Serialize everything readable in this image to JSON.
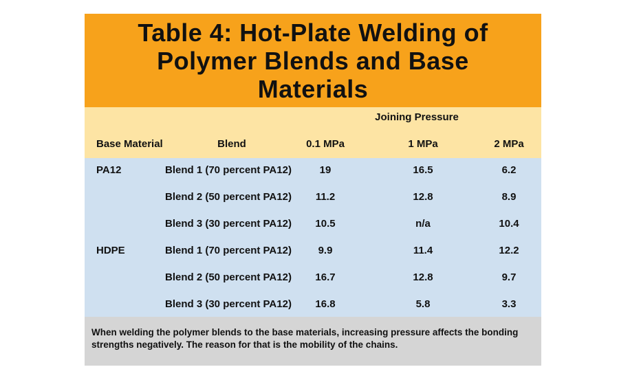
{
  "title": "Table 4: Hot-Plate Welding of Polymer Blends and Base Materials",
  "group_header": "Joining Pressure",
  "columns": {
    "base_material": "Base Material",
    "blend": "Blend",
    "p01": "0.1 MPa",
    "p1": "1 MPa",
    "p2": "2 MPa"
  },
  "rows": [
    {
      "base": "PA12",
      "blend": "Blend 1 (70 percent PA12)",
      "p01": "19",
      "p1": "16.5",
      "p2": "6.2"
    },
    {
      "base": "",
      "blend": "Blend 2 (50 percent PA12)",
      "p01": "11.2",
      "p1": "12.8",
      "p2": "8.9"
    },
    {
      "base": "",
      "blend": "Blend 3 (30 percent PA12)",
      "p01": "10.5",
      "p1": "n/a",
      "p2": "10.4"
    },
    {
      "base": "HDPE",
      "blend": "Blend 1 (70 percent PA12)",
      "p01": "9.9",
      "p1": "11.4",
      "p2": "12.2"
    },
    {
      "base": "",
      "blend": "Blend 2 (50 percent PA12)",
      "p01": "16.7",
      "p1": "12.8",
      "p2": "9.7"
    },
    {
      "base": "",
      "blend": "Blend 3 (30 percent PA12)",
      "p01": "16.8",
      "p1": "5.8",
      "p2": "3.3"
    }
  ],
  "note": "When welding the polymer blends to the base materials, increasing pressure affects the bonding strengths negatively. The reason for that is the mobility of the chains.",
  "colors": {
    "title_band": "#f7a21b",
    "header_band": "#fde4a4",
    "body_band": "#cfe0f0",
    "note_band": "#d5d5d5"
  }
}
